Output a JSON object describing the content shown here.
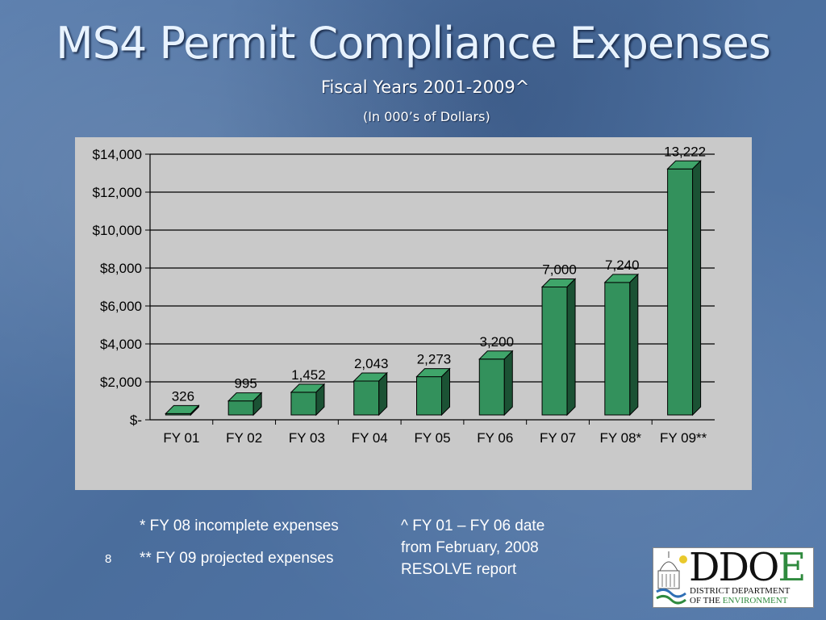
{
  "slide": {
    "title": "MS4 Permit Compliance Expenses",
    "subtitle": "Fiscal Years 2001-2009^",
    "unit_note": "(In 000’s of Dollars)",
    "page_number": "8"
  },
  "notes": {
    "fy08": "* FY 08 incomplete expenses",
    "fy09": "** FY 09 projected expenses",
    "source_line1": "^ FY 01 – FY 06 date",
    "source_line2": "from February, 2008",
    "source_line3": "RESOLVE report"
  },
  "logo": {
    "word_main": "DDO",
    "word_accent": "E",
    "line1": "DISTRICT DEPARTMENT",
    "line2_prefix": "OF THE ",
    "line2_accent": "ENVIRONMENT"
  },
  "colors": {
    "bar_front": "#33915c",
    "bar_top": "#3fa56a",
    "bar_side": "#1b5234",
    "panel": "#c9c9c9",
    "gridline": "#000000"
  },
  "chart_data": {
    "type": "bar",
    "title": "MS4 Permit Compliance Expenses",
    "subtitle": "Fiscal Years 2001-2009^",
    "categories": [
      "FY 01",
      "FY 02",
      "FY 03",
      "FY 04",
      "FY 05",
      "FY 06",
      "FY 07",
      "FY 08*",
      "FY 09**"
    ],
    "values": [
      326,
      995,
      1452,
      2043,
      2273,
      3200,
      7000,
      7240,
      13222
    ],
    "data_labels": [
      "326",
      "995",
      "1,452",
      "2,043",
      "2,273",
      "3,200",
      "7,000",
      "7,240",
      "13,222"
    ],
    "y_ticks": [
      0,
      2000,
      4000,
      6000,
      8000,
      10000,
      12000,
      14000
    ],
    "y_tick_labels": [
      "$-",
      "$2,000",
      "$4,000",
      "$6,000",
      "$8,000",
      "$10,000",
      "$12,000",
      "$14,000"
    ],
    "ylim": [
      0,
      14000
    ],
    "grid": true,
    "legend": "none",
    "style": "3d"
  }
}
